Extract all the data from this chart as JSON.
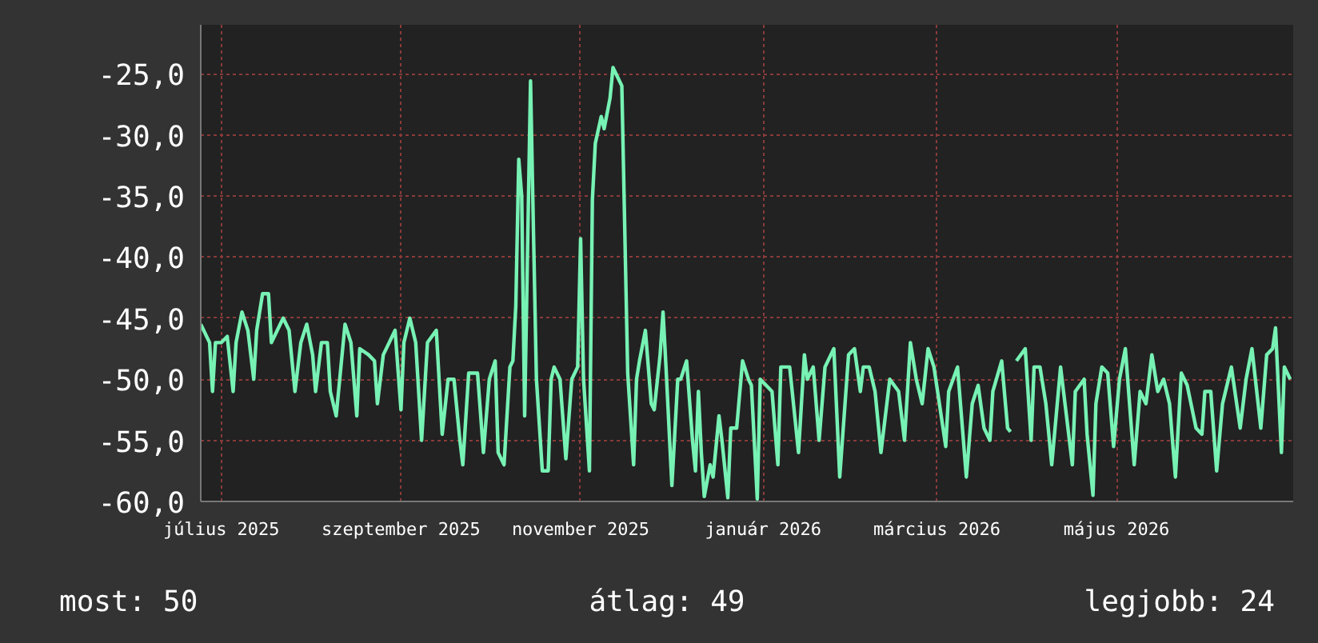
{
  "chart_data": {
    "type": "line",
    "xlim": [
      "2025-07-09",
      "2026-07-15"
    ],
    "ylim": [
      -60,
      -21
    ],
    "xticks": [
      {
        "value": "2025-07-16",
        "label": "július 2025"
      },
      {
        "value": "2025-09-15",
        "label": "szeptember 2025"
      },
      {
        "value": "2025-11-15",
        "label": "november 2025"
      },
      {
        "value": "2026-01-16",
        "label": "január 2026"
      },
      {
        "value": "2026-03-16",
        "label": "március 2026"
      },
      {
        "value": "2026-05-16",
        "label": "május 2026"
      }
    ],
    "yticks": [
      {
        "value": -60,
        "label": "-60,0"
      },
      {
        "value": -55,
        "label": "-55,0"
      },
      {
        "value": -50,
        "label": "-50,0"
      },
      {
        "value": -45,
        "label": "-45,0"
      },
      {
        "value": -40,
        "label": "-40,0"
      },
      {
        "value": -35,
        "label": "-35,0"
      },
      {
        "value": -30,
        "label": "-30,0"
      },
      {
        "value": -25,
        "label": "-25,0"
      }
    ],
    "grid": true,
    "marker": "none",
    "line_style": "solid",
    "annotations": [
      "most: 50",
      "átlag: 49",
      "legjobb: 24"
    ],
    "x": [
      "2025-07-09",
      "2025-07-12",
      "2025-07-13",
      "2025-07-14",
      "2025-07-16",
      "2025-07-18",
      "2025-07-20",
      "2025-07-21",
      "2025-07-23",
      "2025-07-25",
      "2025-07-27",
      "2025-07-28",
      "2025-07-30",
      "2025-08-01",
      "2025-08-02",
      "2025-08-04",
      "2025-08-06",
      "2025-08-08",
      "2025-08-10",
      "2025-08-12",
      "2025-08-14",
      "2025-08-16",
      "2025-08-17",
      "2025-08-19",
      "2025-08-21",
      "2025-08-22",
      "2025-08-24",
      "2025-08-27",
      "2025-08-29",
      "2025-08-31",
      "2025-09-01",
      "2025-09-04",
      "2025-09-06",
      "2025-09-07",
      "2025-09-09",
      "2025-09-11",
      "2025-09-13",
      "2025-09-15",
      "2025-09-16",
      "2025-09-18",
      "2025-09-20",
      "2025-09-22",
      "2025-09-24",
      "2025-09-27",
      "2025-09-29",
      "2025-10-01",
      "2025-10-03",
      "2025-10-05",
      "2025-10-06",
      "2025-10-08",
      "2025-10-11",
      "2025-10-13",
      "2025-10-15",
      "2025-10-17",
      "2025-10-18",
      "2025-10-20",
      "2025-10-22",
      "2025-10-23",
      "2025-10-24",
      "2025-10-25",
      "2025-10-26",
      "2025-10-27",
      "2025-10-29",
      "2025-10-30",
      "2025-10-31",
      "2025-11-02",
      "2025-11-04",
      "2025-11-05",
      "2025-11-06",
      "2025-11-08",
      "2025-11-10",
      "2025-11-12",
      "2025-11-14",
      "2025-11-15",
      "2025-11-16",
      "2025-11-18",
      "2025-11-19",
      "2025-11-20",
      "2025-11-22",
      "2025-11-23",
      "2025-11-25",
      "2025-11-26",
      "2025-11-28",
      "2025-11-29",
      "2025-12-01",
      "2025-12-03",
      "2025-12-04",
      "2025-12-05",
      "2025-12-07",
      "2025-12-09",
      "2025-12-10",
      "2025-12-12",
      "2025-12-13",
      "2025-12-14",
      "2025-12-16",
      "2025-12-18",
      "2025-12-19",
      "2025-12-21",
      "2025-12-23",
      "2025-12-24",
      "2025-12-25",
      "2025-12-26",
      "2025-12-27",
      "2025-12-29",
      "2025-12-30",
      "2026-01-01",
      "2026-01-02",
      "2026-01-04",
      "2026-01-05",
      "2026-01-07",
      "2026-01-09",
      "2026-01-11",
      "2026-01-12",
      "2026-01-14",
      "2026-01-15",
      "2026-01-17",
      "2026-01-19",
      "2026-01-21",
      "2026-01-22",
      "2026-01-25",
      "2026-01-28",
      "2026-01-30",
      "2026-01-31",
      "2026-02-02",
      "2026-02-04",
      "2026-02-06",
      "2026-02-09",
      "2026-02-11",
      "2026-02-14",
      "2026-02-16",
      "2026-02-18",
      "2026-02-19",
      "2026-02-21",
      "2026-02-23",
      "2026-02-25",
      "2026-02-28",
      "2026-03-03",
      "2026-03-05",
      "2026-03-07",
      "2026-03-09",
      "2026-03-11",
      "2026-03-13",
      "2026-03-15",
      "2026-03-19",
      "2026-03-20",
      "2026-03-23",
      "2026-03-26",
      "2026-03-28",
      "2026-03-30",
      "2026-04-01",
      "2026-04-03",
      "2026-04-04",
      "2026-04-07",
      "2026-04-09",
      "2026-04-10",
      "2026-04-11",
      "2026-04-12",
      "2026-04-15",
      "2026-04-17",
      "2026-04-18",
      "2026-04-20",
      "2026-04-22",
      "2026-04-24",
      "2026-04-27",
      "2026-04-28",
      "2026-05-01",
      "2026-05-02",
      "2026-05-05",
      "2026-05-06",
      "2026-05-08",
      "2026-05-09",
      "2026-05-11",
      "2026-05-13",
      "2026-05-15",
      "2026-05-17",
      "2026-05-19",
      "2026-05-22",
      "2026-05-24",
      "2026-05-26",
      "2026-05-28",
      "2026-05-30",
      "2026-06-01",
      "2026-06-03",
      "2026-06-05",
      "2026-06-07",
      "2026-06-09",
      "2026-06-12",
      "2026-06-14",
      "2026-06-15",
      "2026-06-17",
      "2026-06-19",
      "2026-06-21",
      "2026-06-24",
      "2026-06-27",
      "2026-06-29",
      "2026-07-01",
      "2026-07-04",
      "2026-07-06",
      "2026-07-08",
      "2026-07-09",
      "2026-07-11",
      "2026-07-12",
      "2026-07-14"
    ],
    "series": [
      {
        "color": "#77f2b4",
        "values": [
          -45.5,
          -47,
          -51,
          -47,
          -47,
          -46.5,
          -51,
          -47,
          -44.5,
          -46,
          -50,
          -46,
          -43,
          -43,
          -47,
          -46,
          -45,
          -46,
          -51,
          -47,
          -45.5,
          -48,
          -51,
          -47,
          -47,
          -51,
          -53,
          -45.5,
          -47,
          -53,
          -47.5,
          -48,
          -48.5,
          -52,
          -48,
          -47,
          -46,
          -52.5,
          -47,
          -45,
          -47,
          -55,
          -47,
          -46,
          -54.5,
          -50,
          -50,
          -55,
          -57,
          -49.5,
          -49.5,
          -56,
          -50,
          -48.5,
          -56,
          -57,
          -49,
          -48.5,
          -44,
          -32,
          -35,
          -53,
          -25.6,
          -38,
          -50,
          -57.5,
          -57.5,
          -50,
          -49,
          -50,
          -56.5,
          -50,
          -49,
          -38.5,
          -50,
          -57.5,
          -35.3,
          -30.7,
          -28.5,
          -29.5,
          -27,
          -24.5,
          -25.5,
          -26,
          -49.5,
          -57,
          -50,
          -48.5,
          -46,
          -52,
          -52.5,
          -48,
          -44.5,
          -49,
          -58.7,
          -50,
          -50,
          -48.5,
          -55,
          -57.5,
          -51,
          -56,
          -59.6,
          -57,
          -58,
          -53,
          -55,
          -59.7,
          -54,
          -54,
          -48.5,
          -50,
          -50.5,
          -59.8,
          -50,
          -50.5,
          -51,
          -57,
          -49,
          -49,
          -56,
          -48,
          -50,
          -49,
          -55,
          -49,
          -47.5,
          -58,
          -48,
          -47.5,
          -51,
          -49,
          -49,
          -51,
          -56,
          -50,
          -51,
          -55,
          -47,
          -50,
          -52,
          -47.5,
          -49,
          -55.5,
          -51,
          -49,
          -58,
          -52,
          -50.5,
          -54,
          -55,
          -51,
          -48.5,
          -54,
          -54.3,
          null,
          -48.5,
          -47.5,
          -55,
          -49,
          -49,
          -52,
          -57,
          -49,
          -51,
          -57,
          -51,
          -50,
          -54.5,
          -59.5,
          -52,
          -49,
          -49.5,
          -55.5,
          -50,
          -47.5,
          -57,
          -51,
          -52,
          -48,
          -51,
          -50,
          -52,
          -58,
          -49.5,
          -50.5,
          -54,
          -54.5,
          -51,
          -51,
          -57.5,
          -52,
          -49,
          -54,
          -50,
          -47.5,
          -54,
          -48,
          -47.5,
          -45.8,
          -56,
          -49,
          -50
        ]
      }
    ]
  }
}
